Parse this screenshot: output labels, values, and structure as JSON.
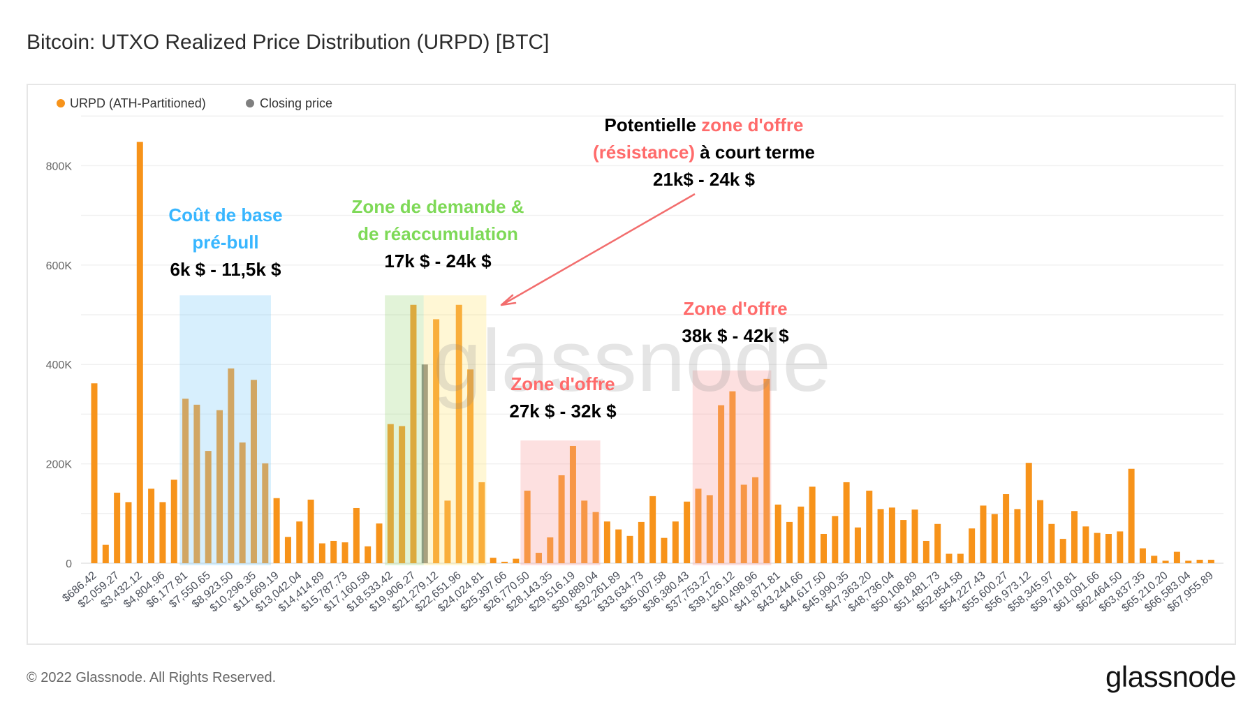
{
  "header": {
    "title": "Bitcoin: UTXO Realized Price Distribution (URPD) [BTC]"
  },
  "footer": {
    "copyright": "© 2022 Glassnode. All Rights Reserved.",
    "logo": "glassnode"
  },
  "watermark": "glassnode",
  "colors": {
    "urpd": "#f7931a",
    "closing": "#7f7f7f",
    "blue_zone": "#38b6ff",
    "green_zone": "#7ed957",
    "red_zone": "#ff6b6b",
    "yellow_zone": "#ffe680"
  },
  "chart_data": {
    "type": "bar",
    "title": "Bitcoin: UTXO Realized Price Distribution (URPD) [BTC]",
    "legend": {
      "placement": "top-left",
      "items": [
        {
          "name": "URPD (ATH-Partitioned)",
          "color": "#f7931a"
        },
        {
          "name": "Closing price",
          "color": "#7f7f7f"
        }
      ]
    },
    "ylim": [
      0,
      900000
    ],
    "grid": true,
    "y_ticks": [
      {
        "value": 0,
        "label": "0"
      },
      {
        "value": 200000,
        "label": "200K"
      },
      {
        "value": 400000,
        "label": "400K"
      },
      {
        "value": 600000,
        "label": "600K"
      },
      {
        "value": 800000,
        "label": "800K"
      }
    ],
    "x_tick_labels": [
      "$686.42",
      "$2,059.27",
      "$3,432.12",
      "$4,804.96",
      "$6,177.81",
      "$7,550.65",
      "$8,923.50",
      "$10,296.35",
      "$11,669.19",
      "$13,042.04",
      "$14,414.89",
      "$15,787.73",
      "$17,160.58",
      "$18,533.42",
      "$19,906.27",
      "$21,279.12",
      "$22,651.96",
      "$24,024.81",
      "$25,397.66",
      "$26,770.50",
      "$28,143.35",
      "$29,516.19",
      "$30,889.04",
      "$32,261.89",
      "$33,634.73",
      "$35,007.58",
      "$36,380.43",
      "$37,753.27",
      "$39,126.12",
      "$40,498.96",
      "$41,871.81",
      "$43,244.66",
      "$44,617.50",
      "$45,990.35",
      "$47,363.20",
      "$48,736.04",
      "$50,108.89",
      "$51,481.73",
      "$52,854.58",
      "$54,227.43",
      "$55,600.27",
      "$56,973.12",
      "$58,345.97",
      "$59,718.81",
      "$61,091.66",
      "$62,464.50",
      "$63,837.35",
      "$65,210.20",
      "$66,583.04",
      "$67,955.89"
    ],
    "values": [
      362000,
      37000,
      142000,
      123000,
      848000,
      150000,
      123000,
      168000,
      331000,
      319000,
      226000,
      308000,
      392000,
      243000,
      369000,
      201000,
      131000,
      53000,
      84000,
      128000,
      40000,
      45000,
      42000,
      111000,
      34000,
      80000,
      280000,
      276000,
      520000,
      400000,
      491000,
      126000,
      520000,
      390000,
      163000,
      11000,
      3000,
      9000,
      146000,
      21000,
      52000,
      177000,
      236000,
      126000,
      103000,
      84000,
      68000,
      55000,
      83000,
      135000,
      51000,
      84000,
      124000,
      150000,
      137000,
      318000,
      346000,
      158000,
      173000,
      371000,
      118000,
      83000,
      114000,
      154000,
      59000,
      95000,
      163000,
      72000,
      146000,
      109000,
      112000,
      87000,
      108000,
      45000,
      79000,
      19000,
      19000,
      70000,
      116000,
      99000,
      139000,
      109000,
      202000,
      127000,
      79000,
      49000,
      105000,
      74000,
      61000,
      59000,
      64000,
      190000,
      30000,
      15000,
      5000,
      23000,
      5000,
      7000,
      7000
    ],
    "closing_price_bar_index": 29,
    "highlight_zones": [
      {
        "name": "pre-bull-cost-basis",
        "color": "#87cefa",
        "bar_range": [
          7.5,
          15.5
        ],
        "top": 539000
      },
      {
        "name": "demand-zone-green",
        "color": "#a6dc8a",
        "bar_range": [
          25.5,
          28.9
        ],
        "top": 539000
      },
      {
        "name": "demand-zone-yellow",
        "color": "#ffe680",
        "bar_range": [
          28.9,
          34.4
        ],
        "top": 539000
      },
      {
        "name": "supply-zone-27k-32k",
        "color": "#f8a0a0",
        "bar_range": [
          37.4,
          44.4
        ],
        "top": 247000
      },
      {
        "name": "supply-zone-38k-42k",
        "color": "#f8a0a0",
        "bar_range": [
          52.5,
          59.4
        ],
        "top": 388000
      }
    ]
  },
  "annotations": {
    "pre_bull": {
      "line1": "Coût de base",
      "line2": "pré-bull",
      "range": "6k $ - 11,5k $"
    },
    "demand": {
      "line1": "Zone de demande &",
      "line2": "de réaccumulation",
      "range": "17k $ - 24k $"
    },
    "resistance": {
      "l1a": "Potentielle ",
      "l1b": "zone d'offre",
      "l2a": "(résistance)",
      "l2b": " à court terme",
      "range": "21k$ - 24k $"
    },
    "supply1": {
      "line1": "Zone d'offre",
      "range": "27k $ - 32k $"
    },
    "supply2": {
      "line1": "Zone d'offre",
      "range": "38k $ - 42k $"
    }
  }
}
